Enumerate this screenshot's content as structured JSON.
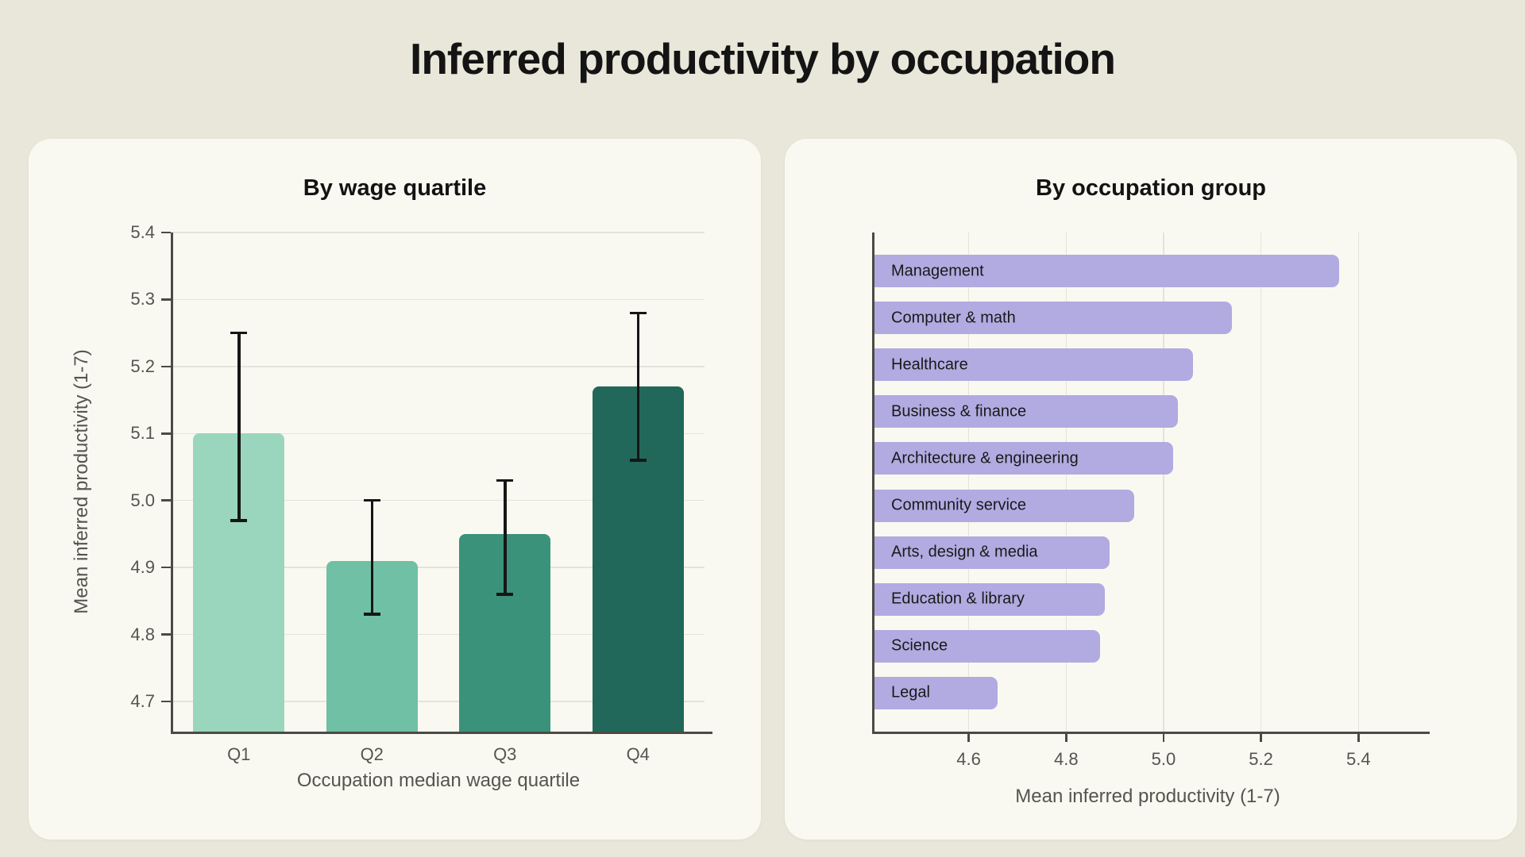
{
  "page": {
    "title": "Inferred productivity by occupation",
    "background_color": "#e8e7da",
    "panel_color": "#faf9f1",
    "grid_color": "#e5e3d9",
    "spine_color": "#4b4a45",
    "tick_text_color": "#55544e",
    "error_bar_color": "#161616"
  },
  "chart_data": [
    {
      "type": "bar",
      "title": "By wage quartile",
      "categories": [
        "Q1",
        "Q2",
        "Q3",
        "Q4"
      ],
      "values": [
        5.1,
        4.91,
        4.95,
        5.17
      ],
      "error_low": [
        4.97,
        4.83,
        4.86,
        5.06
      ],
      "error_high": [
        5.25,
        5.0,
        5.03,
        5.28
      ],
      "bar_colors": [
        "#9ad5be",
        "#6fc0a5",
        "#3b927a",
        "#21685a"
      ],
      "xlabel": "Occupation median wage quartile",
      "ylabel": "Mean inferred productivity (1-7)",
      "yticks": [
        4.7,
        4.8,
        4.9,
        5.0,
        5.1,
        5.2,
        5.3,
        5.4
      ],
      "ylim": [
        4.655,
        5.4
      ],
      "grid": "horizontal",
      "legend": "none"
    },
    {
      "type": "bar-horizontal",
      "title": "By occupation group",
      "categories": [
        "Management",
        "Computer & math",
        "Healthcare",
        "Business & finance",
        "Architecture & engineering",
        "Community service",
        "Arts, design & media",
        "Education & library",
        "Science",
        "Legal"
      ],
      "values": [
        5.36,
        5.14,
        5.06,
        5.03,
        5.02,
        4.94,
        4.89,
        4.88,
        4.87,
        4.66
      ],
      "bar_color": "#b1abe1",
      "bar_label_color": "#191919",
      "xlabel": "Mean inferred productivity (1-7)",
      "xticks": [
        4.6,
        4.8,
        5.0,
        5.2,
        5.4
      ],
      "xlim": [
        4.405,
        5.53
      ],
      "grid": "vertical",
      "legend": "none"
    }
  ]
}
